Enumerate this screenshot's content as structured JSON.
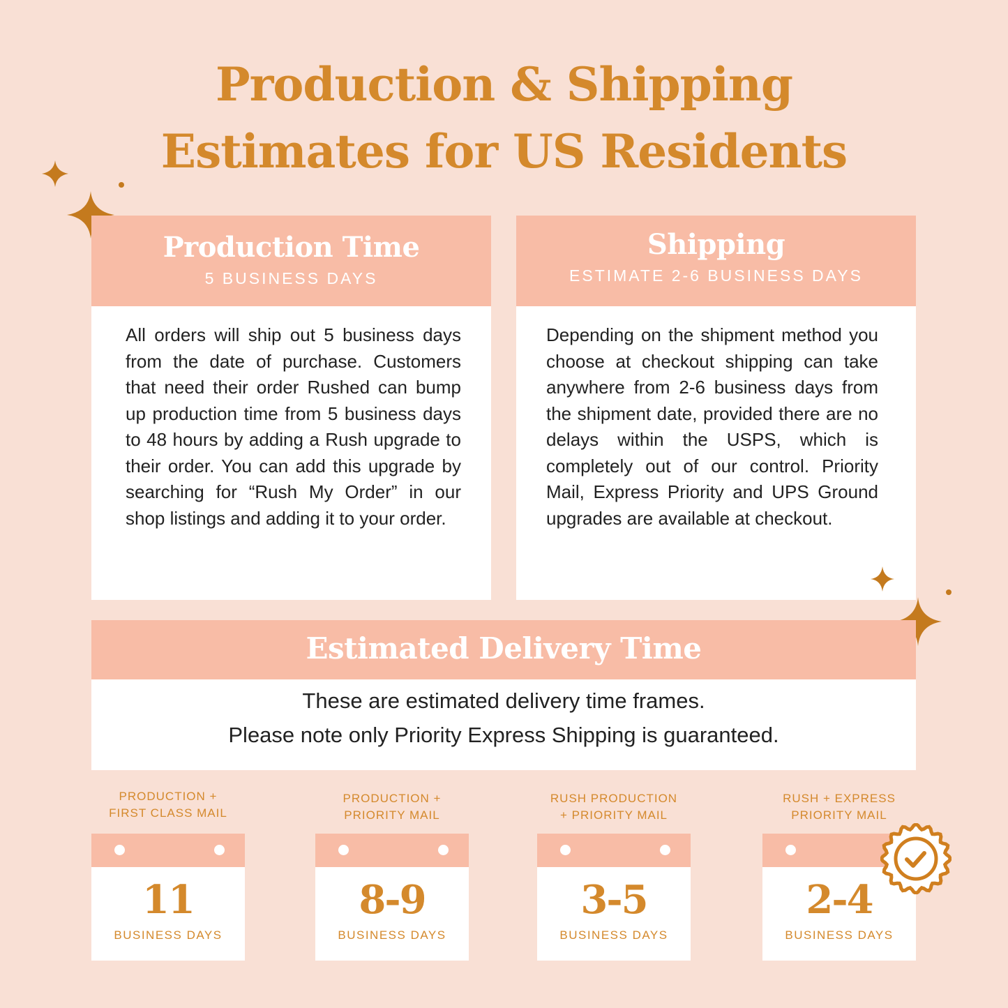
{
  "title": {
    "line1": "Production & Shipping",
    "line2": "Estimates for US Residents"
  },
  "production": {
    "heading": "Production Time",
    "subheading": "5 BUSINESS DAYS",
    "body": "All orders will ship out 5 business days from the date of purchase. Customers that need their order Rushed can bump up production time from 5 business days to 48 hours by adding a Rush upgrade to their order. You can add this upgrade by searching for “Rush My Order” in our shop listings and adding it to your order."
  },
  "shipping": {
    "heading": "Shipping",
    "subheading": "ESTIMATE 2-6 BUSINESS DAYS",
    "body": "Depending on the shipment method you choose at checkout shipping can take anywhere from 2-6 business days from the shipment date, provided there are no delays within the USPS, which is completely out of our control. Priority Mail, Express Priority and UPS Ground upgrades are available at checkout."
  },
  "delivery": {
    "heading": "Estimated Delivery Time",
    "line1": "These are estimated delivery time frames.",
    "line2": "Please note only Priority Express Shipping is guaranteed."
  },
  "options": [
    {
      "label1": "PRODUCTION +",
      "label2": "FIRST CLASS MAIL",
      "days": "11",
      "unit": "BUSINESS DAYS"
    },
    {
      "label1": "PRODUCTION +",
      "label2": "PRIORITY MAIL",
      "days": "8-9",
      "unit": "BUSINESS DAYS"
    },
    {
      "label1": "RUSH PRODUCTION",
      "label2": "+ PRIORITY MAIL",
      "days": "3-5",
      "unit": "BUSINESS DAYS"
    },
    {
      "label1": "RUSH + EXPRESS",
      "label2": "PRIORITY MAIL",
      "days": "2-4",
      "unit": "BUSINESS DAYS"
    }
  ],
  "icons": {
    "guaranteed": "badge-check-icon",
    "decor": "sparkle-icon"
  },
  "colors": {
    "background": "#f9e0d5",
    "header": "#f8bca6",
    "accent": "#d4892c",
    "star": "#c47a1e"
  }
}
